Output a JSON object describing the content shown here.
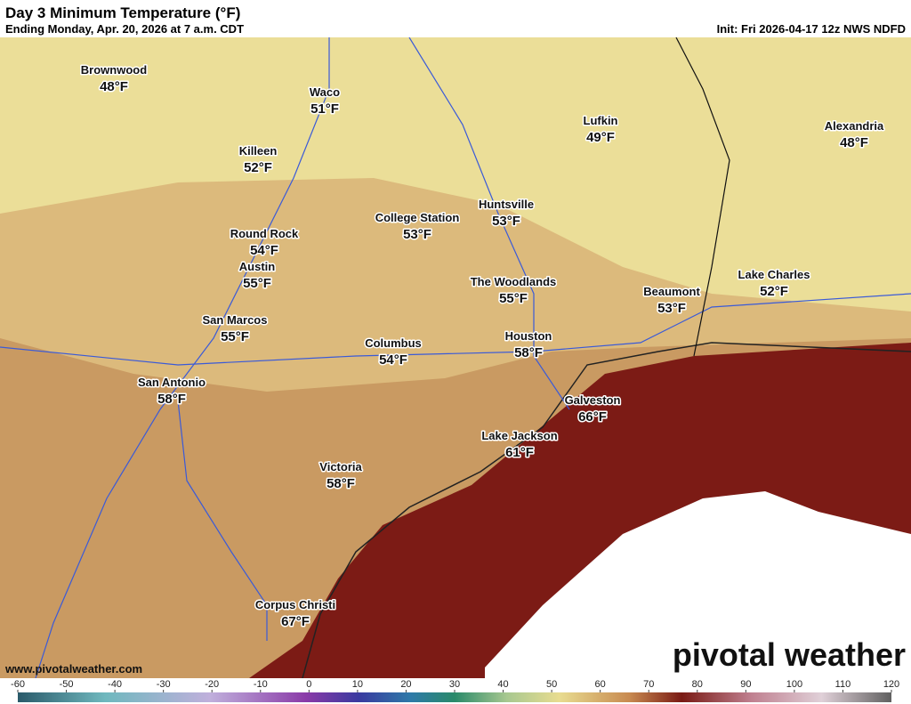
{
  "header": {
    "title": "Day 3 Minimum Temperature (°F)",
    "subtitle": "Ending Monday, Apr. 20, 2026 at 7 a.m. CDT",
    "init": "Init: Fri 2026-04-17 12z NWS NDFD"
  },
  "cities": [
    {
      "name": "Brownwood",
      "temp": "48°F"
    },
    {
      "name": "Waco",
      "temp": "51°F"
    },
    {
      "name": "Killeen",
      "temp": "52°F"
    },
    {
      "name": "Lufkin",
      "temp": "49°F"
    },
    {
      "name": "Alexandria",
      "temp": "48°F"
    },
    {
      "name": "College Station",
      "temp": "53°F"
    },
    {
      "name": "Huntsville",
      "temp": "53°F"
    },
    {
      "name": "Round Rock",
      "temp": "54°F"
    },
    {
      "name": "Austin",
      "temp": "55°F"
    },
    {
      "name": "The Woodlands",
      "temp": "55°F"
    },
    {
      "name": "Beaumont",
      "temp": "53°F"
    },
    {
      "name": "Lake Charles",
      "temp": "52°F"
    },
    {
      "name": "San Marcos",
      "temp": "55°F"
    },
    {
      "name": "Columbus",
      "temp": "54°F"
    },
    {
      "name": "Houston",
      "temp": "58°F"
    },
    {
      "name": "San Antonio",
      "temp": "58°F"
    },
    {
      "name": "Galveston",
      "temp": "66°F"
    },
    {
      "name": "Lake Jackson",
      "temp": "61°F"
    },
    {
      "name": "Victoria",
      "temp": "58°F"
    },
    {
      "name": "Corpus Christi",
      "temp": "67°F"
    }
  ],
  "footer": {
    "website": "www.pivotalweather.com",
    "logo": "pivotal weather"
  },
  "colorbar": {
    "ticks": [
      -60,
      -50,
      -40,
      -30,
      -20,
      -10,
      0,
      10,
      20,
      30,
      40,
      50,
      60,
      70,
      80,
      90,
      100,
      110,
      120
    ]
  }
}
